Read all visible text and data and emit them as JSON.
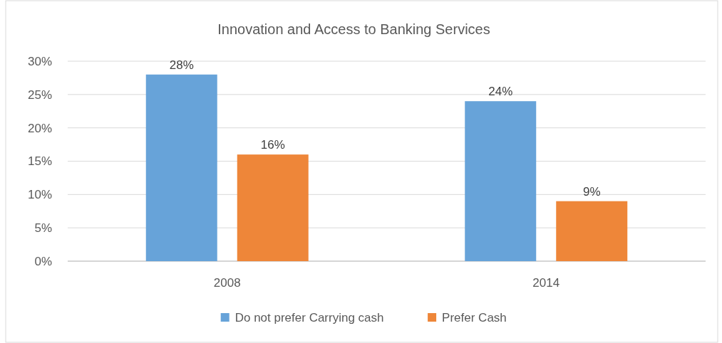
{
  "chart_data": {
    "type": "bar",
    "title": "Innovation and Access to Banking Services",
    "categories": [
      "2008",
      "2014"
    ],
    "series": [
      {
        "name": "Do not prefer Carrying cash",
        "color": "#67a3d9",
        "values": [
          28,
          24
        ]
      },
      {
        "name": "Prefer Cash",
        "color": "#ee8639",
        "values": [
          16,
          9
        ]
      }
    ],
    "ylim": [
      0,
      30
    ],
    "yticks": [
      {
        "value": 0,
        "label": "0%"
      },
      {
        "value": 5,
        "label": "5%"
      },
      {
        "value": 10,
        "label": "10%"
      },
      {
        "value": 15,
        "label": "15%"
      },
      {
        "value": 20,
        "label": "20%"
      },
      {
        "value": 25,
        "label": "25%"
      },
      {
        "value": 30,
        "label": "30%"
      }
    ],
    "value_labels": [
      [
        "28%",
        "24%"
      ],
      [
        "16%",
        "9%"
      ]
    ],
    "grid": "y",
    "legend": "bottom"
  }
}
